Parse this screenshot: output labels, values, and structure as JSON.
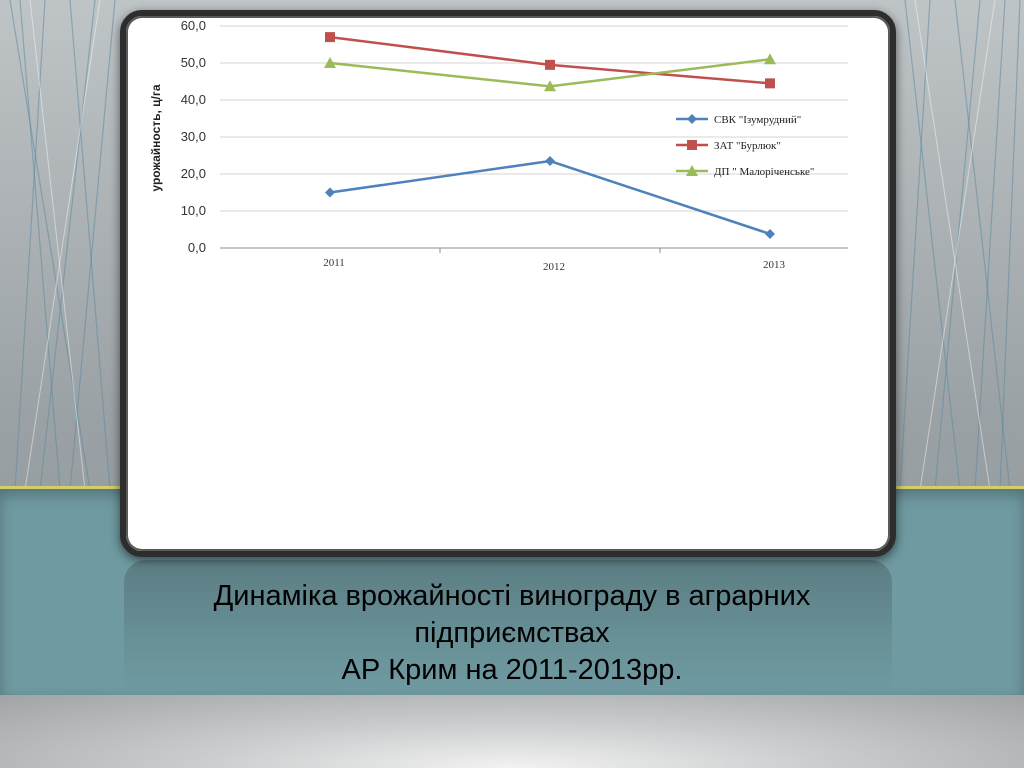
{
  "slide": {
    "caption_line1": "Динаміка врожайності винограду в аграрних",
    "caption_line2": "підприємствах",
    "caption_line3": "АР Крим на 2011-2013рр."
  },
  "colors": {
    "band": "#6f9aa1",
    "band_stripe": "#d2cf6a",
    "frame": "#2d2d2d"
  },
  "chart_data": {
    "type": "line",
    "title": "",
    "xlabel": "",
    "ylabel": "урожайность, ц/га",
    "categories": [
      "2011",
      "2012",
      "2013"
    ],
    "ylim": [
      0,
      60
    ],
    "yticks": [
      "0,0",
      "10,0",
      "20,0",
      "30,0",
      "40,0",
      "50,0",
      "60,0"
    ],
    "grid": true,
    "legend_position": "right",
    "series": [
      {
        "name": "СВК \"Ізумрудний\"",
        "values": [
          15.0,
          23.5,
          3.8
        ],
        "color": "#4f81bd",
        "marker": "diamond"
      },
      {
        "name": "ЗАТ \"Бурлюк\"",
        "values": [
          57.0,
          49.5,
          44.5
        ],
        "color": "#c0504d",
        "marker": "square"
      },
      {
        "name": "ДП \" Малоріченське\"",
        "values": [
          50.0,
          43.7,
          51.0
        ],
        "color": "#9bbb59",
        "marker": "triangle"
      }
    ]
  }
}
